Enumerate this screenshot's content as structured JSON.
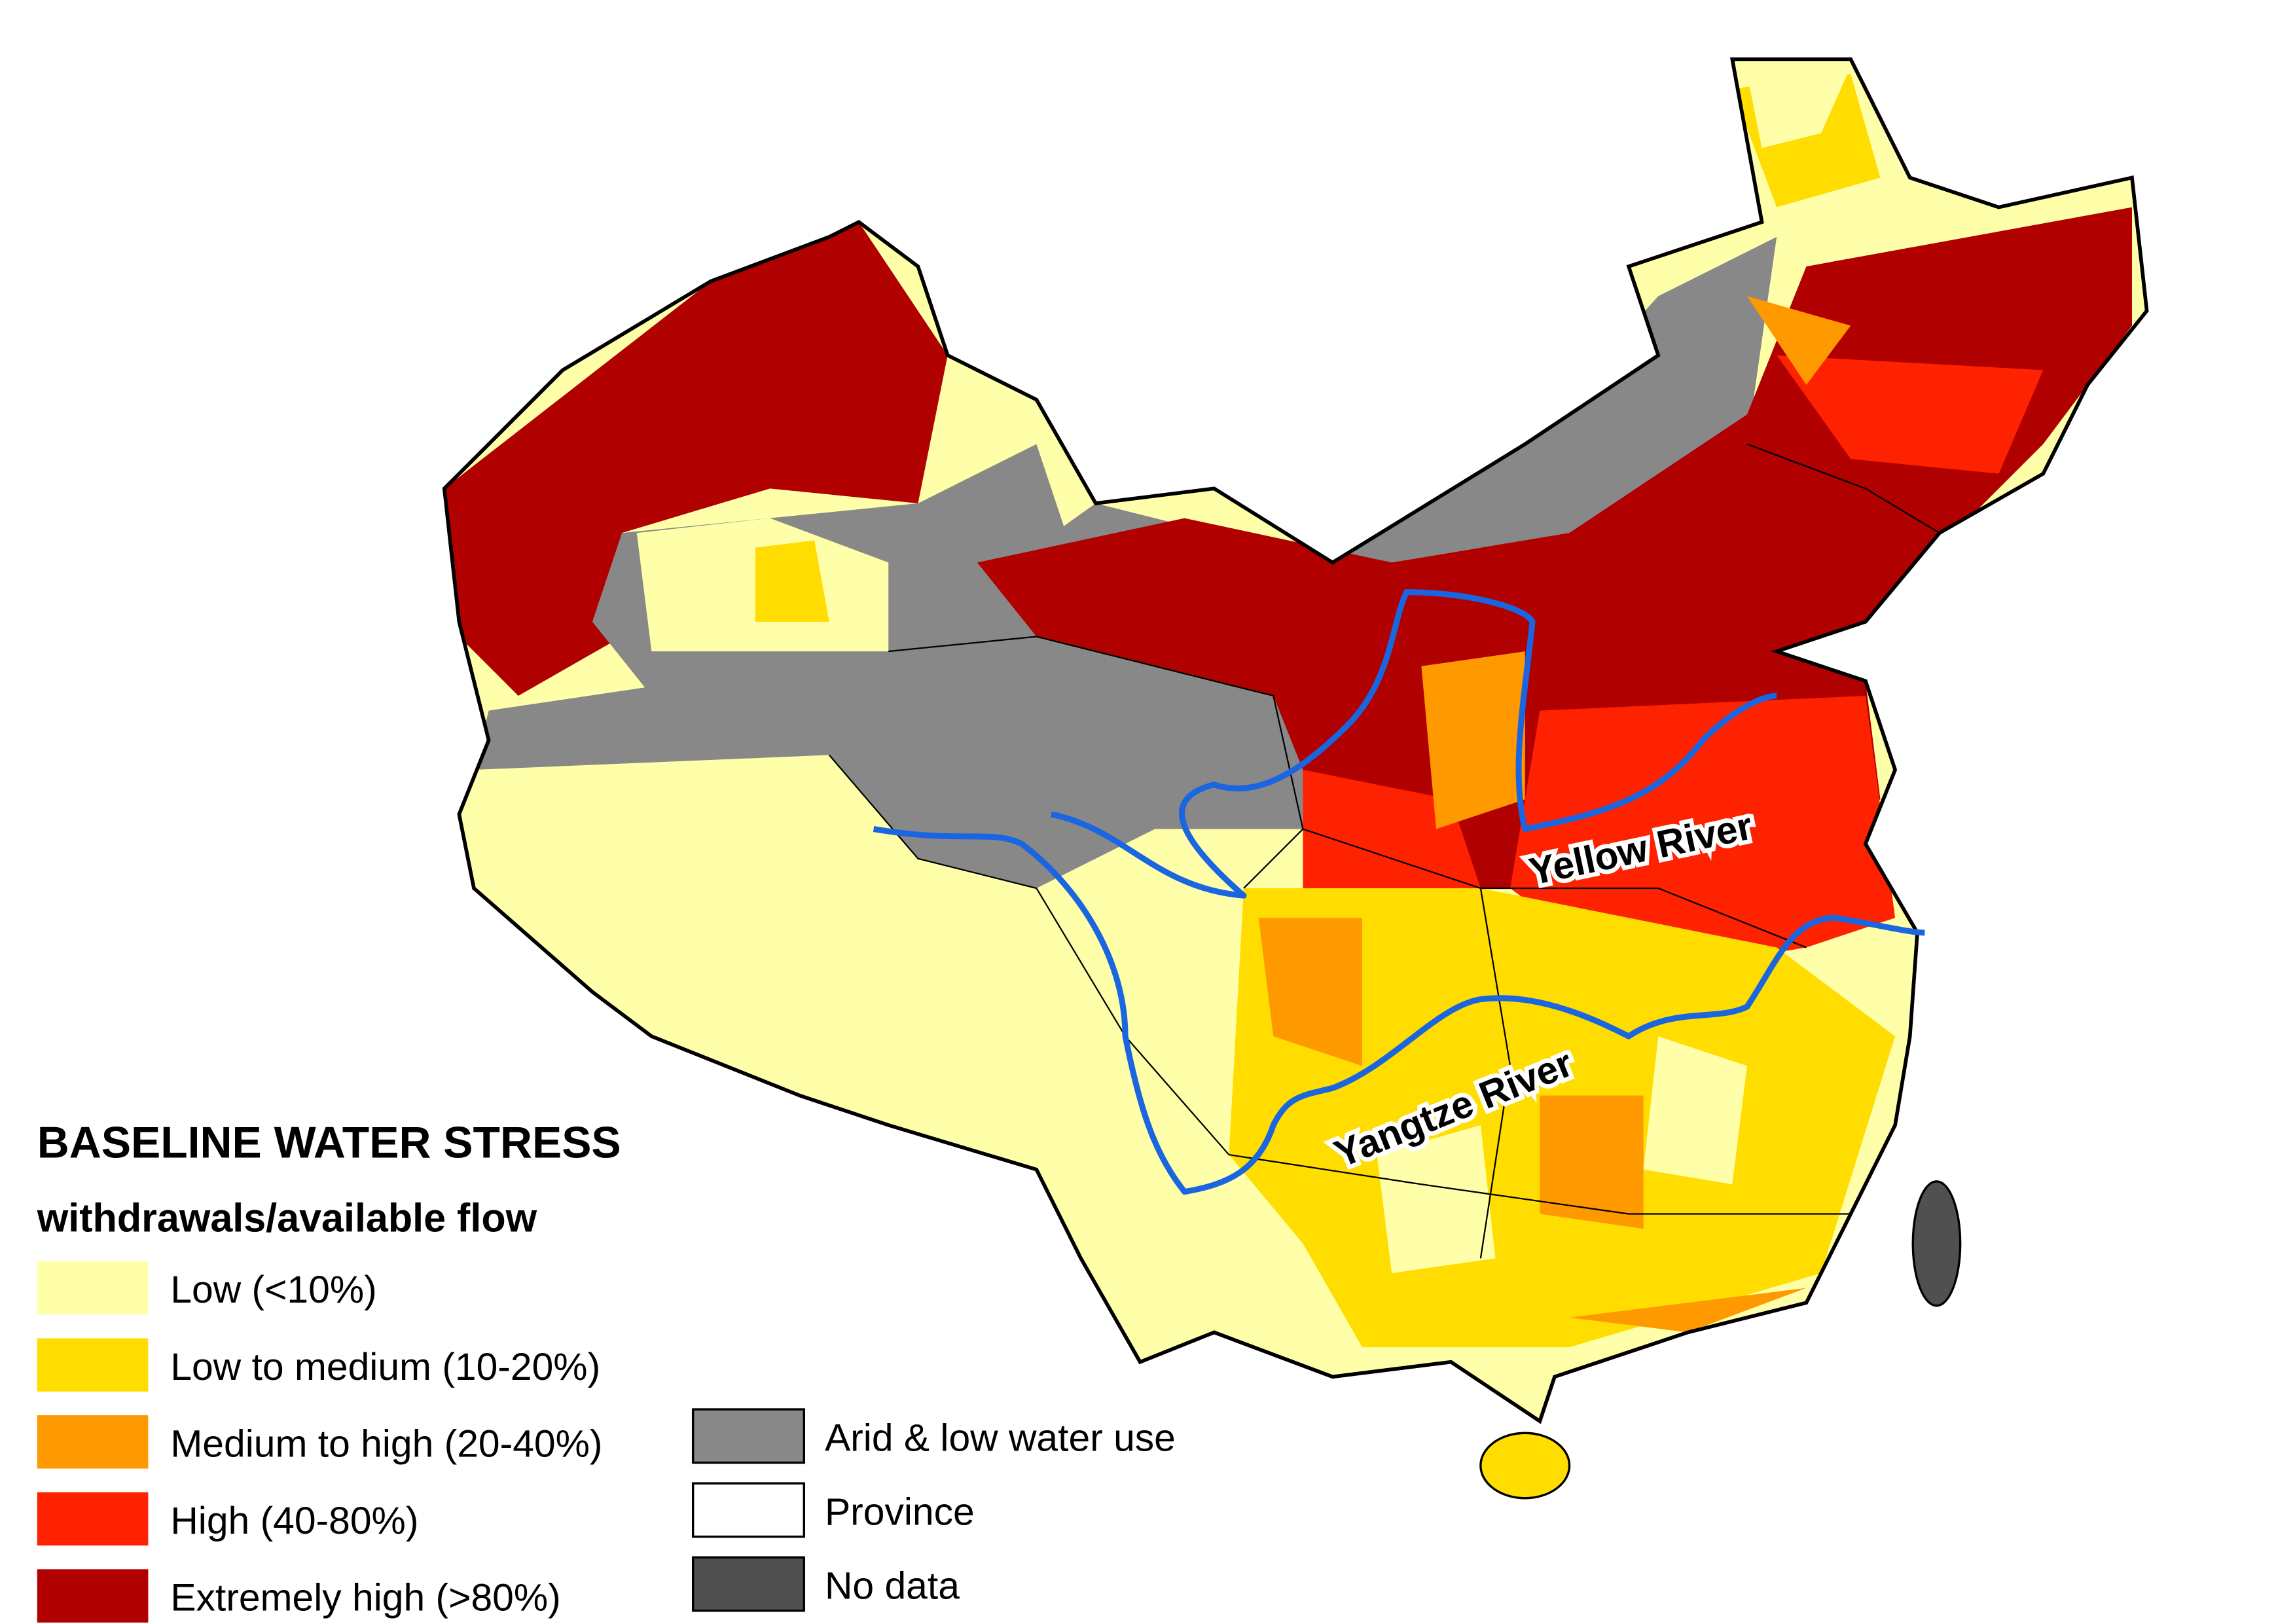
{
  "legend": {
    "title": "BASELINE WATER STRESS",
    "subtitle": "withdrawals/available flow",
    "items": [
      {
        "label": "Low (<10%)",
        "color": "#ffffaa"
      },
      {
        "label": "Low to medium (10-20%)",
        "color": "#ffdd00"
      },
      {
        "label": "Medium to high (20-40%)",
        "color": "#ff9900"
      },
      {
        "label": "High (40-80%)",
        "color": "#ff2200"
      },
      {
        "label": "Extremely high (>80%)",
        "color": "#b00000"
      }
    ],
    "extra_items": [
      {
        "label": "Arid & low water use",
        "color": "#888888"
      },
      {
        "label": "Province",
        "color": "#ffffff"
      },
      {
        "label": "No data",
        "color": "#505050"
      }
    ]
  },
  "rivers": [
    {
      "label": "Yellow River",
      "color": "#1a66e0"
    },
    {
      "label": "Yangtze River",
      "color": "#1a66e0"
    }
  ]
}
